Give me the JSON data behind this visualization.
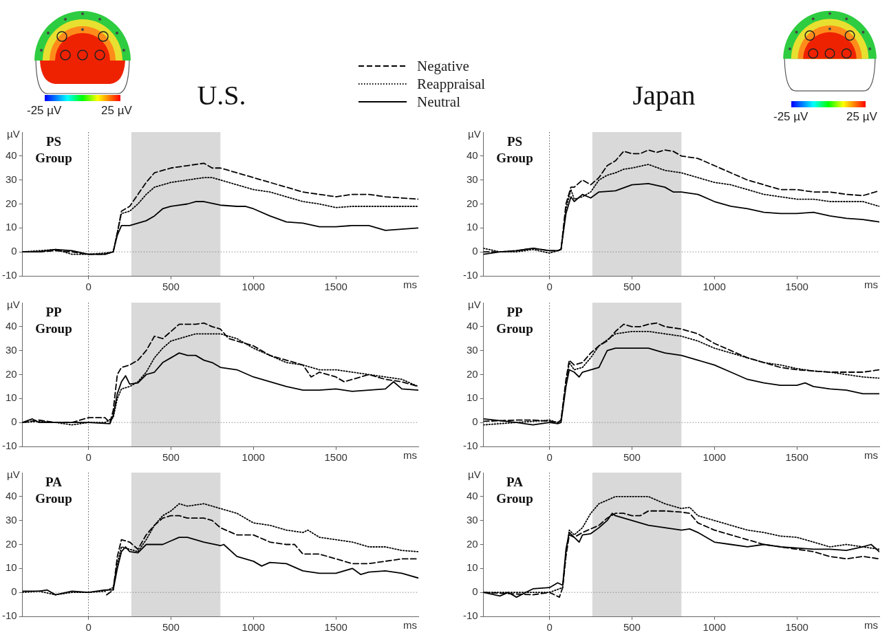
{
  "chart_data": [
    {
      "type": "line",
      "title": "PS Group",
      "subtitle": "U.S.",
      "xlabel": "ms",
      "ylabel": "µV",
      "annotations": [
        "-25 µV",
        "25 µV"
      ],
      "xlim": [
        -400,
        2000
      ],
      "ylim": [
        -10,
        50
      ],
      "xticks": [
        0,
        500,
        1000,
        1500
      ],
      "yticks": [
        -10,
        0,
        10,
        20,
        30,
        40
      ],
      "grid": false,
      "marker": "none",
      "legend": "top right",
      "ref_lines": [
        {
          "axis": "x",
          "value": 0,
          "color": "#555555",
          "line_style": "dotted"
        },
        {
          "axis": "y",
          "value": 0,
          "color": "#888888",
          "line_style": "dotted"
        }
      ],
      "bands": [
        {
          "axis": "x",
          "from": 260,
          "to": 800,
          "color": "#d9d9d9"
        }
      ],
      "series": [
        {
          "name": "Negative",
          "color": "#000000",
          "line_style": "dashed",
          "x": [
            -400,
            -300,
            -200,
            -100,
            0,
            100,
            150,
            175,
            200,
            250,
            300,
            350,
            400,
            450,
            500,
            600,
            700,
            750,
            800,
            850,
            900,
            1000,
            1100,
            1200,
            1300,
            1400,
            1500,
            1600,
            1700,
            1800,
            1900,
            2000
          ],
          "values": [
            0,
            0,
            0.5,
            0,
            -1,
            -1,
            0,
            8,
            17,
            19,
            24,
            29,
            33,
            34,
            35,
            36,
            37,
            35,
            35,
            34,
            33,
            31,
            29,
            27,
            25,
            24,
            23,
            24,
            24,
            23,
            22.5,
            22
          ]
        },
        {
          "name": "Reappraisal",
          "color": "#000000",
          "line_style": "dotted",
          "x": [
            -400,
            -300,
            -200,
            -100,
            0,
            100,
            150,
            175,
            200,
            250,
            300,
            350,
            400,
            450,
            500,
            600,
            700,
            750,
            800,
            900,
            1000,
            1100,
            1200,
            1300,
            1400,
            1500,
            1600,
            1700,
            1800,
            1900,
            2000
          ],
          "values": [
            0,
            0.5,
            1,
            -1,
            -1,
            -0.5,
            0,
            8,
            16,
            17,
            20,
            24,
            27,
            28,
            29,
            30,
            31,
            31,
            30,
            28,
            26,
            25,
            23,
            21,
            20,
            18.5,
            19,
            19,
            19,
            19,
            19
          ]
        },
        {
          "name": "Neutral",
          "color": "#000000",
          "line_style": "solid",
          "x": [
            -400,
            -300,
            -200,
            -100,
            0,
            100,
            150,
            175,
            200,
            250,
            300,
            350,
            400,
            450,
            500,
            600,
            650,
            700,
            800,
            900,
            950,
            1000,
            1100,
            1200,
            1300,
            1400,
            1500,
            1600,
            1700,
            1800,
            1900,
            2000
          ],
          "values": [
            0,
            0,
            1,
            0.5,
            -1,
            -1,
            0,
            7,
            11,
            11,
            12,
            13,
            15,
            18,
            19,
            20,
            21,
            21,
            19.5,
            19,
            19,
            18,
            15,
            12.5,
            12,
            10.5,
            10.5,
            11,
            11,
            9,
            9.5,
            10
          ]
        }
      ]
    },
    {
      "type": "line",
      "title": "PS Group",
      "subtitle": "Japan",
      "xlabel": "ms",
      "ylabel": "µV",
      "annotations": [
        "-25 µV",
        "25 µV"
      ],
      "xlim": [
        -400,
        2000
      ],
      "ylim": [
        -10,
        50
      ],
      "xticks": [
        0,
        500,
        1000,
        1500
      ],
      "yticks": [
        -10,
        0,
        10,
        20,
        30,
        40
      ],
      "grid": false,
      "marker": "none",
      "ref_lines": [
        {
          "axis": "x",
          "value": 0,
          "color": "#555555",
          "line_style": "dotted"
        },
        {
          "axis": "y",
          "value": 0,
          "color": "#888888",
          "line_style": "dotted"
        }
      ],
      "bands": [
        {
          "axis": "x",
          "from": 260,
          "to": 800,
          "color": "#d9d9d9"
        }
      ],
      "series": [
        {
          "color": "#000000",
          "line_style": "dashed",
          "x": [
            -400,
            -300,
            -200,
            -100,
            0,
            50,
            70,
            100,
            130,
            150,
            200,
            250,
            300,
            350,
            400,
            450,
            500,
            550,
            600,
            650,
            700,
            750,
            800,
            900,
            1000,
            1100,
            1200,
            1300,
            1400,
            1500,
            1600,
            1700,
            1800,
            1900,
            2000
          ],
          "values": [
            0,
            0,
            0.5,
            1.5,
            0.5,
            0.5,
            1,
            20,
            27,
            27,
            30,
            28,
            31,
            36,
            38,
            42,
            41,
            41,
            42.5,
            41.5,
            42.5,
            42,
            40,
            39,
            36,
            33,
            30,
            28,
            26,
            26,
            25,
            25,
            24,
            23.5,
            25.5
          ]
        },
        {
          "color": "#000000",
          "line_style": "dotted",
          "x": [
            -400,
            -300,
            -200,
            -100,
            0,
            50,
            70,
            100,
            130,
            150,
            200,
            250,
            300,
            350,
            400,
            450,
            500,
            600,
            700,
            800,
            900,
            1000,
            1100,
            1200,
            1300,
            1400,
            1500,
            1600,
            1700,
            1800,
            1900,
            2000
          ],
          "values": [
            1.5,
            0,
            0,
            1,
            -0.5,
            0.5,
            1,
            18,
            26,
            22,
            23,
            25,
            30,
            32,
            33,
            34.5,
            35,
            36.5,
            34,
            33,
            31,
            29,
            28,
            26,
            24,
            23,
            22,
            22,
            21,
            21,
            21,
            19
          ]
        },
        {
          "color": "#000000",
          "line_style": "solid",
          "x": [
            -400,
            -300,
            -200,
            -100,
            0,
            50,
            70,
            100,
            130,
            150,
            200,
            250,
            300,
            400,
            500,
            600,
            700,
            750,
            800,
            900,
            1000,
            1100,
            1200,
            1300,
            1400,
            1500,
            1600,
            1700,
            1800,
            1900,
            2000
          ],
          "values": [
            -1,
            0,
            0.5,
            1.5,
            0.5,
            0.5,
            1,
            16,
            23,
            21,
            24,
            22.5,
            25,
            25.5,
            28,
            28.5,
            27,
            25,
            25,
            24,
            21,
            19,
            18,
            16.5,
            16,
            16,
            16.5,
            15,
            14,
            13.5,
            12.5
          ]
        }
      ]
    },
    {
      "type": "line",
      "title": "PP Group",
      "xlabel": "ms",
      "ylabel": "µV",
      "xlim": [
        -400,
        2000
      ],
      "ylim": [
        -10,
        50
      ],
      "xticks": [
        0,
        500,
        1000,
        1500
      ],
      "yticks": [
        -10,
        0,
        10,
        20,
        30,
        40
      ],
      "grid": false,
      "marker": "none",
      "ref_lines": [
        {
          "axis": "x",
          "value": 0,
          "color": "#555555",
          "line_style": "dotted"
        },
        {
          "axis": "y",
          "value": 0,
          "color": "#888888",
          "line_style": "dotted"
        }
      ],
      "bands": [
        {
          "axis": "x",
          "from": 260,
          "to": 800,
          "color": "#d9d9d9"
        }
      ],
      "series": [
        {
          "color": "#000000",
          "line_style": "dashed",
          "x": [
            -400,
            -300,
            -200,
            -100,
            0,
            100,
            130,
            150,
            175,
            200,
            250,
            300,
            350,
            400,
            450,
            500,
            550,
            600,
            650,
            700,
            750,
            800,
            850,
            900,
            1000,
            1100,
            1200,
            1300,
            1350,
            1400,
            1500,
            1550,
            1600,
            1700,
            1800,
            1900,
            2000
          ],
          "values": [
            0,
            1,
            0,
            0,
            2,
            2,
            0,
            5,
            20,
            23,
            24,
            26,
            30,
            36,
            35,
            38,
            41,
            41,
            41,
            41.5,
            40,
            39,
            35,
            34,
            32,
            28,
            26,
            24,
            19,
            21,
            19,
            17,
            18,
            20,
            18,
            17,
            15
          ]
        },
        {
          "color": "#000000",
          "line_style": "dotted",
          "x": [
            -400,
            -300,
            -200,
            -100,
            0,
            100,
            150,
            175,
            200,
            250,
            300,
            350,
            400,
            450,
            500,
            550,
            600,
            650,
            700,
            800,
            900,
            1000,
            1100,
            1200,
            1300,
            1400,
            1500,
            1600,
            1700,
            1800,
            1900,
            2000
          ],
          "values": [
            0,
            0.5,
            0,
            -1,
            0,
            0,
            2,
            10,
            14,
            15,
            17,
            21,
            27,
            31,
            34,
            35,
            36,
            37,
            37,
            37,
            35,
            31,
            28,
            25,
            24,
            22,
            22,
            21,
            20,
            19,
            18,
            15
          ]
        },
        {
          "color": "#000000",
          "line_style": "solid",
          "x": [
            -400,
            -340,
            -300,
            -200,
            -100,
            0,
            130,
            150,
            175,
            200,
            225,
            250,
            300,
            350,
            400,
            450,
            500,
            550,
            600,
            650,
            700,
            750,
            800,
            900,
            1000,
            1100,
            1200,
            1300,
            1400,
            1500,
            1600,
            1700,
            1800,
            1850,
            1900,
            2000
          ],
          "values": [
            0,
            1.5,
            0,
            0,
            0,
            0,
            -0.5,
            3,
            12,
            17,
            19.5,
            16,
            16.5,
            20,
            21,
            25,
            27,
            29,
            28,
            28,
            26,
            25,
            23,
            22,
            19,
            17,
            15,
            13.5,
            13.5,
            14,
            13,
            13.5,
            14,
            17,
            14,
            13.5
          ]
        }
      ]
    },
    {
      "type": "line",
      "title": "PP Group",
      "xlabel": "ms",
      "ylabel": "µV",
      "xlim": [
        -400,
        2000
      ],
      "ylim": [
        -10,
        50
      ],
      "xticks": [
        0,
        500,
        1000,
        1500
      ],
      "yticks": [
        -10,
        0,
        10,
        20,
        30,
        40
      ],
      "grid": false,
      "marker": "none",
      "ref_lines": [
        {
          "axis": "x",
          "value": 0,
          "color": "#555555",
          "line_style": "dotted"
        },
        {
          "axis": "y",
          "value": 0,
          "color": "#888888",
          "line_style": "dotted"
        }
      ],
      "bands": [
        {
          "axis": "x",
          "from": 260,
          "to": 800,
          "color": "#d9d9d9"
        }
      ],
      "series": [
        {
          "color": "#000000",
          "line_style": "dashed",
          "x": [
            -400,
            -200,
            -100,
            0,
            50,
            70,
            100,
            120,
            150,
            200,
            250,
            300,
            350,
            400,
            450,
            500,
            550,
            600,
            650,
            700,
            800,
            900,
            1000,
            1100,
            1200,
            1300,
            1400,
            1500,
            1600,
            1700,
            1800,
            1900,
            2000
          ],
          "values": [
            0.5,
            1,
            1,
            0.5,
            0,
            1,
            18,
            26,
            24,
            25,
            29,
            32,
            34,
            38,
            41,
            40,
            40,
            41,
            41.5,
            40,
            39,
            37,
            33,
            30,
            27,
            25,
            23,
            22,
            21.5,
            21,
            21,
            21,
            22
          ]
        },
        {
          "color": "#000000",
          "line_style": "dotted",
          "x": [
            -400,
            -200,
            -100,
            0,
            50,
            70,
            100,
            120,
            150,
            200,
            250,
            300,
            400,
            500,
            600,
            700,
            800,
            900,
            1000,
            1100,
            1200,
            1300,
            1400,
            1500,
            1600,
            1700,
            1800,
            1900,
            2000
          ],
          "values": [
            -1,
            0,
            0.5,
            1,
            0,
            1,
            16,
            25,
            22,
            23,
            27,
            32,
            37,
            38,
            38,
            37,
            36,
            34,
            31,
            29,
            27,
            25,
            24,
            22.5,
            21.5,
            21,
            20,
            19,
            18.5
          ]
        },
        {
          "color": "#000000",
          "line_style": "solid",
          "x": [
            -400,
            -200,
            -100,
            0,
            50,
            70,
            100,
            120,
            150,
            180,
            200,
            300,
            350,
            400,
            500,
            600,
            700,
            800,
            900,
            1000,
            1100,
            1200,
            1300,
            1400,
            1500,
            1550,
            1600,
            1700,
            1800,
            1900,
            2000
          ],
          "values": [
            1.5,
            0,
            -1,
            0,
            -0.5,
            0,
            15,
            22,
            21,
            19,
            21,
            23,
            30,
            31,
            31,
            31,
            29,
            28,
            26,
            24,
            21,
            18,
            16.5,
            15.5,
            15.5,
            16.5,
            15,
            14,
            13.5,
            12,
            12
          ]
        }
      ]
    },
    {
      "type": "line",
      "title": "PA Group",
      "xlabel": "ms",
      "ylabel": "µV",
      "xlim": [
        -400,
        2000
      ],
      "ylim": [
        -10,
        50
      ],
      "xticks": [
        0,
        500,
        1000,
        1500
      ],
      "yticks": [
        -10,
        0,
        10,
        20,
        30,
        40
      ],
      "grid": false,
      "marker": "none",
      "ref_lines": [
        {
          "axis": "x",
          "value": 0,
          "color": "#555555",
          "line_style": "dotted"
        },
        {
          "axis": "y",
          "value": 0,
          "color": "#888888",
          "line_style": "dotted"
        }
      ],
      "bands": [
        {
          "axis": "x",
          "from": 260,
          "to": 800,
          "color": "#d9d9d9"
        }
      ],
      "series": [
        {
          "color": "#000000",
          "line_style": "dashed",
          "x": [
            110,
            150,
            175,
            200,
            250,
            300,
            350,
            400,
            450,
            500,
            550,
            600,
            700,
            750,
            800,
            900,
            1000,
            1100,
            1200,
            1250,
            1300,
            1400,
            1500,
            1600,
            1700,
            1800,
            1900,
            2000
          ],
          "values": [
            -1,
            1,
            15,
            22,
            21,
            18,
            24,
            28,
            31,
            32,
            32,
            31,
            31,
            30,
            27,
            24,
            24,
            21,
            20,
            20,
            16,
            16,
            14,
            12,
            12,
            13,
            14,
            14
          ]
        },
        {
          "color": "#000000",
          "line_style": "dotted",
          "x": [
            -400,
            -300,
            -200,
            -100,
            0,
            100,
            150,
            175,
            200,
            250,
            300,
            350,
            400,
            450,
            500,
            550,
            600,
            700,
            800,
            900,
            1000,
            1100,
            1200,
            1300,
            1330,
            1400,
            1500,
            1600,
            1700,
            1800,
            1900,
            2000
          ],
          "values": [
            0,
            0.5,
            -1,
            0,
            0,
            0.5,
            2,
            12,
            19,
            18,
            17,
            22,
            28,
            32,
            34,
            37,
            36,
            37,
            35,
            33,
            29,
            28,
            26,
            25,
            26,
            23,
            22,
            21,
            19,
            19,
            17.5,
            17
          ]
        },
        {
          "color": "#000000",
          "line_style": "solid",
          "x": [
            -400,
            -300,
            -250,
            -200,
            -100,
            0,
            100,
            150,
            175,
            200,
            225,
            250,
            300,
            350,
            400,
            450,
            500,
            550,
            600,
            700,
            800,
            820,
            900,
            1000,
            1050,
            1100,
            1200,
            1300,
            1400,
            1500,
            1600,
            1650,
            1700,
            1800,
            1900,
            2000
          ],
          "values": [
            0.5,
            0.5,
            1,
            -1,
            0.5,
            0,
            1,
            1,
            10,
            17,
            19,
            17,
            16.5,
            20,
            20,
            20,
            21.5,
            23,
            23,
            21,
            19.5,
            20,
            15,
            13,
            11,
            12.5,
            12,
            9,
            8,
            8,
            10,
            7.5,
            8.5,
            9,
            8,
            6
          ]
        }
      ]
    },
    {
      "type": "line",
      "title": "PA Group",
      "xlabel": "ms",
      "ylabel": "µV",
      "xlim": [
        -400,
        2000
      ],
      "ylim": [
        -10,
        50
      ],
      "xticks": [
        0,
        500,
        1000,
        1500
      ],
      "yticks": [
        -10,
        0,
        10,
        20,
        30,
        40
      ],
      "grid": false,
      "marker": "none",
      "ref_lines": [
        {
          "axis": "x",
          "value": 0,
          "color": "#555555",
          "line_style": "dotted"
        },
        {
          "axis": "y",
          "value": 0,
          "color": "#888888",
          "line_style": "dotted"
        }
      ],
      "bands": [
        {
          "axis": "x",
          "from": 260,
          "to": 800,
          "color": "#d9d9d9"
        }
      ],
      "series": [
        {
          "color": "#000000",
          "line_style": "dashed",
          "x": [
            -400,
            -100,
            0,
            60,
            80,
            100,
            120,
            150,
            200,
            300,
            350,
            400,
            450,
            500,
            550,
            600,
            700,
            800,
            850,
            900,
            1000,
            1100,
            1200,
            1300,
            1400,
            1500,
            1600,
            1700,
            1800,
            1900,
            2000
          ],
          "values": [
            0,
            -1,
            0,
            -2,
            2,
            15,
            24,
            23,
            25,
            28,
            31,
            33,
            33,
            32,
            32,
            34,
            34,
            33.5,
            33,
            29,
            26,
            24,
            22,
            20,
            19,
            18,
            17,
            15,
            14,
            15,
            14
          ]
        },
        {
          "color": "#000000",
          "line_style": "dotted",
          "x": [
            -400,
            0,
            80,
            100,
            120,
            150,
            200,
            250,
            300,
            400,
            500,
            600,
            700,
            800,
            850,
            900,
            1000,
            1100,
            1200,
            1300,
            1400,
            1500,
            1600,
            1700,
            1800,
            1900,
            2000
          ],
          "values": [
            0,
            0,
            2,
            16,
            26,
            24,
            27,
            33,
            37,
            40,
            40,
            40,
            37,
            35,
            35.5,
            32,
            30,
            28,
            26,
            25,
            23.5,
            23,
            21,
            19,
            20,
            19,
            18
          ]
        },
        {
          "color": "#000000",
          "line_style": "solid",
          "x": [
            -400,
            -300,
            -250,
            -200,
            -100,
            0,
            50,
            80,
            100,
            120,
            150,
            180,
            200,
            250,
            300,
            350,
            380,
            400,
            500,
            600,
            700,
            800,
            850,
            900,
            1000,
            1100,
            1200,
            1300,
            1400,
            1500,
            1600,
            1700,
            1800,
            1900,
            1950,
            2000
          ],
          "values": [
            0,
            -1.5,
            0,
            -2,
            1.5,
            2,
            4,
            3,
            18,
            25,
            23,
            21,
            24,
            24.5,
            27,
            30,
            33,
            32,
            30,
            28,
            27,
            26,
            26.5,
            25,
            21,
            20,
            19,
            20,
            19,
            18.5,
            18,
            18,
            17.5,
            19,
            20,
            17
          ]
        }
      ]
    }
  ]
}
